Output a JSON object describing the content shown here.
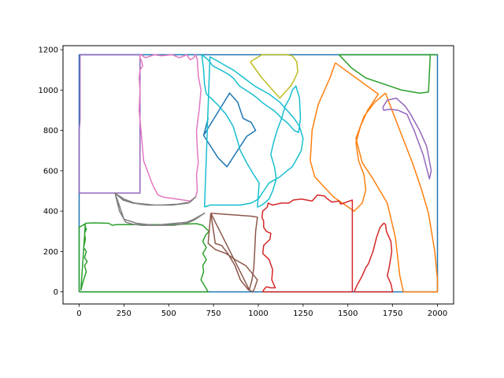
{
  "chart_data": {
    "type": "line",
    "title": "",
    "xlabel": "",
    "ylabel": "",
    "xlim": [
      -90,
      2090
    ],
    "ylim": [
      -60,
      1220
    ],
    "grid": false,
    "legend": "none",
    "xticks": [
      0,
      250,
      500,
      750,
      1000,
      1250,
      1500,
      1750,
      2000
    ],
    "yticks": [
      0,
      200,
      400,
      600,
      800,
      1000,
      1200
    ],
    "xtick_labels": [
      "0",
      "250",
      "500",
      "750",
      "1000",
      "1250",
      "1500",
      "1750",
      "2000"
    ],
    "ytick_labels": [
      "0",
      "200",
      "400",
      "600",
      "800",
      "1000",
      "1200"
    ],
    "series": [
      {
        "color": "#1f77b4",
        "x": [
          0,
          2000,
          2000,
          0,
          0
        ],
        "y": [
          0,
          0,
          1175,
          1175,
          0
        ]
      },
      {
        "color": "#1f77b4",
        "x": [
          695,
          840,
          885,
          915,
          960,
          985,
          935,
          825,
          775,
          695,
          720,
          695
        ],
        "y": [
          775,
          985,
          940,
          860,
          840,
          800,
          770,
          620,
          665,
          775,
          860,
          775
        ]
      },
      {
        "color": "#ff7f0e",
        "x": [
          1430,
          1670,
          1610,
          1570,
          1545,
          1560,
          1590,
          1600,
          1580,
          1535,
          1420,
          1315,
          1290,
          1300,
          1335,
          1400,
          1430
        ],
        "y": [
          1135,
          980,
          900,
          820,
          740,
          650,
          580,
          505,
          440,
          400,
          470,
          570,
          650,
          800,
          930,
          1060,
          1135
        ]
      },
      {
        "color": "#ff7f0e",
        "x": [
          1710,
          1790,
          1860,
          1910,
          1950,
          1985,
          2000,
          2000,
          1810,
          1790,
          1765,
          1720,
          1640,
          1580,
          1545,
          1590,
          1650,
          1710
        ],
        "y": [
          985,
          800,
          640,
          510,
          390,
          200,
          60,
          0,
          0,
          80,
          270,
          440,
          560,
          640,
          760,
          870,
          940,
          985
        ]
      },
      {
        "color": "#2ca02c",
        "x": [
          1450,
          2000,
          1960,
          1950,
          1900,
          1800,
          1700,
          1600,
          1520,
          1450
        ],
        "y": [
          1175,
          1175,
          1175,
          990,
          985,
          1000,
          1030,
          1060,
          1110,
          1175
        ]
      },
      {
        "color": "#2ca02c",
        "x": [
          0,
          0,
          30,
          40,
          30,
          35,
          25,
          40,
          30,
          45,
          30,
          40,
          25,
          10,
          35,
          85,
          165,
          185,
          205,
          520,
          655,
          690,
          725,
          705,
          690,
          710,
          690,
          710,
          690,
          695,
          680,
          720,
          0
        ],
        "y": [
          0,
          320,
          335,
          310,
          290,
          260,
          220,
          200,
          170,
          150,
          130,
          100,
          60,
          10,
          340,
          342,
          340,
          330,
          333,
          333,
          338,
          330,
          300,
          280,
          250,
          220,
          190,
          160,
          130,
          100,
          60,
          0,
          0
        ]
      },
      {
        "color": "#d62728",
        "x": [
          1525,
          1525,
          1460,
          1450,
          1410,
          1380,
          1370,
          1330,
          1300,
          1240,
          1195,
          1170,
          1130,
          1080,
          1055,
          1050,
          1025,
          1020,
          1030,
          1030,
          1045,
          1070,
          1065,
          1030,
          1025,
          1060,
          1080,
          1075,
          1095,
          1070,
          1045,
          1030,
          1025,
          1525
        ],
        "y": [
          0,
          455,
          435,
          450,
          445,
          465,
          475,
          480,
          450,
          460,
          455,
          440,
          440,
          430,
          440,
          420,
          400,
          370,
          350,
          320,
          300,
          290,
          260,
          230,
          190,
          160,
          110,
          60,
          20,
          20,
          25,
          10,
          0,
          0
        ]
      },
      {
        "color": "#d62728",
        "x": [
          1535,
          1550,
          1580,
          1600,
          1615,
          1640,
          1660,
          1680,
          1700,
          1710,
          1715,
          1740,
          1745,
          1730,
          1720,
          1740,
          1750,
          1535
        ],
        "y": [
          0,
          30,
          80,
          120,
          140,
          200,
          270,
          320,
          340,
          335,
          300,
          250,
          200,
          120,
          80,
          40,
          0,
          0
        ]
      },
      {
        "color": "#9467bd",
        "x": [
          0,
          340,
          340,
          5,
          5,
          0,
          0
        ],
        "y": [
          490,
          490,
          1175,
          1175,
          850,
          800,
          490
        ]
      },
      {
        "color": "#9467bd",
        "x": [
          1695,
          1720,
          1770,
          1820,
          1850,
          1900,
          1940,
          1965,
          1955,
          1920,
          1870,
          1830,
          1780,
          1735,
          1700,
          1695
        ],
        "y": [
          915,
          950,
          960,
          920,
          880,
          800,
          720,
          600,
          560,
          680,
          800,
          880,
          900,
          905,
          900,
          915
        ]
      },
      {
        "color": "#8c564b",
        "x": [
          735,
          720,
          760,
          820,
          870,
          930,
          995,
          980,
          970,
          945,
          900,
          870,
          830,
          795,
          760,
          735
        ],
        "y": [
          390,
          240,
          210,
          190,
          160,
          130,
          60,
          20,
          0,
          10,
          60,
          130,
          190,
          230,
          240,
          390
        ]
      },
      {
        "color": "#8c564b",
        "x": [
          735,
          960,
          995,
          985,
          980,
          975,
          965,
          950,
          735
        ],
        "y": [
          390,
          375,
          370,
          300,
          200,
          120,
          60,
          10,
          390
        ]
      },
      {
        "color": "#e377c2",
        "x": [
          340,
          340,
          350,
          355,
          340,
          335,
          340,
          335,
          345,
          360,
          410,
          440,
          470,
          620,
          650,
          660,
          655,
          665,
          660,
          655,
          670,
          680,
          665,
          660,
          650,
          640,
          620,
          600,
          560,
          520,
          460,
          420,
          370,
          345,
          340
        ],
        "y": [
          1175,
          1160,
          1140,
          1120,
          1100,
          1060,
          1000,
          900,
          800,
          650,
          530,
          480,
          470,
          450,
          470,
          500,
          580,
          640,
          700,
          800,
          900,
          1000,
          1070,
          1150,
          1175,
          1160,
          1150,
          1175,
          1160,
          1175,
          1170,
          1175,
          1160,
          1175,
          1175
        ]
      },
      {
        "color": "#7f7f7f",
        "x": [
          200,
          250,
          310,
          420,
          520,
          610,
          650,
          620,
          550,
          460,
          380,
          300,
          245,
          200
        ],
        "y": [
          490,
          460,
          440,
          430,
          430,
          440,
          470,
          445,
          435,
          430,
          430,
          440,
          455,
          490
        ]
      },
      {
        "color": "#7f7f7f",
        "x": [
          200,
          220,
          250,
          320,
          420,
          530,
          600,
          640,
          700,
          640,
          600,
          540,
          480,
          420,
          350,
          300,
          260,
          225,
          200
        ],
        "y": [
          490,
          440,
          360,
          340,
          330,
          330,
          340,
          355,
          390,
          360,
          345,
          340,
          335,
          330,
          330,
          335,
          345,
          400,
          490
        ]
      },
      {
        "color": "#bcbd22",
        "x": [
          955,
          1020,
          1080,
          1110,
          1130,
          1160,
          1190,
          1215,
          1220,
          1200,
          1180,
          1160,
          1120,
          1080,
          1020,
          955
        ],
        "y": [
          1140,
          1175,
          1175,
          1175,
          1175,
          1175,
          1170,
          1140,
          1090,
          1050,
          1020,
          1000,
          960,
          1000,
          1060,
          1140
        ]
      },
      {
        "color": "#17becf",
        "x": [
          685,
          720,
          745,
          790,
          830,
          860,
          895,
          930,
          965,
          995,
          1020,
          1050,
          1085,
          1110,
          1130,
          1160,
          1180,
          1200,
          1225,
          1235,
          1230,
          1210,
          1190,
          1175,
          1150,
          1130,
          1105,
          1085,
          1070,
          1090,
          1100,
          1080,
          1060,
          1020,
          995,
          1000,
          1005,
          975,
          935,
          900,
          880,
          860,
          820,
          770,
          735,
          710,
          700,
          695,
          685
        ],
        "y": [
          1175,
          1150,
          1120,
          1100,
          1080,
          1060,
          1020,
          1000,
          980,
          960,
          940,
          920,
          900,
          880,
          860,
          840,
          820,
          800,
          790,
          860,
          960,
          1020,
          1000,
          960,
          920,
          860,
          800,
          740,
          680,
          620,
          560,
          500,
          460,
          430,
          420,
          480,
          540,
          580,
          640,
          700,
          760,
          820,
          880,
          930,
          960,
          980,
          1030,
          1100,
          1175
        ]
      },
      {
        "color": "#17becf",
        "x": [
          700,
          730,
          800,
          900,
          960,
          1000,
          1030,
          1060,
          1120,
          1160,
          1190,
          1240,
          1250,
          1230,
          1200,
          1160,
          1120,
          1060,
          1020,
          980,
          920,
          860,
          800,
          760,
          730,
          700
        ],
        "y": [
          420,
          430,
          430,
          430,
          440,
          460,
          500,
          540,
          570,
          600,
          620,
          700,
          760,
          820,
          860,
          900,
          940,
          980,
          1000,
          1020,
          1060,
          1100,
          1130,
          1150,
          1165,
          420
        ]
      }
    ]
  }
}
